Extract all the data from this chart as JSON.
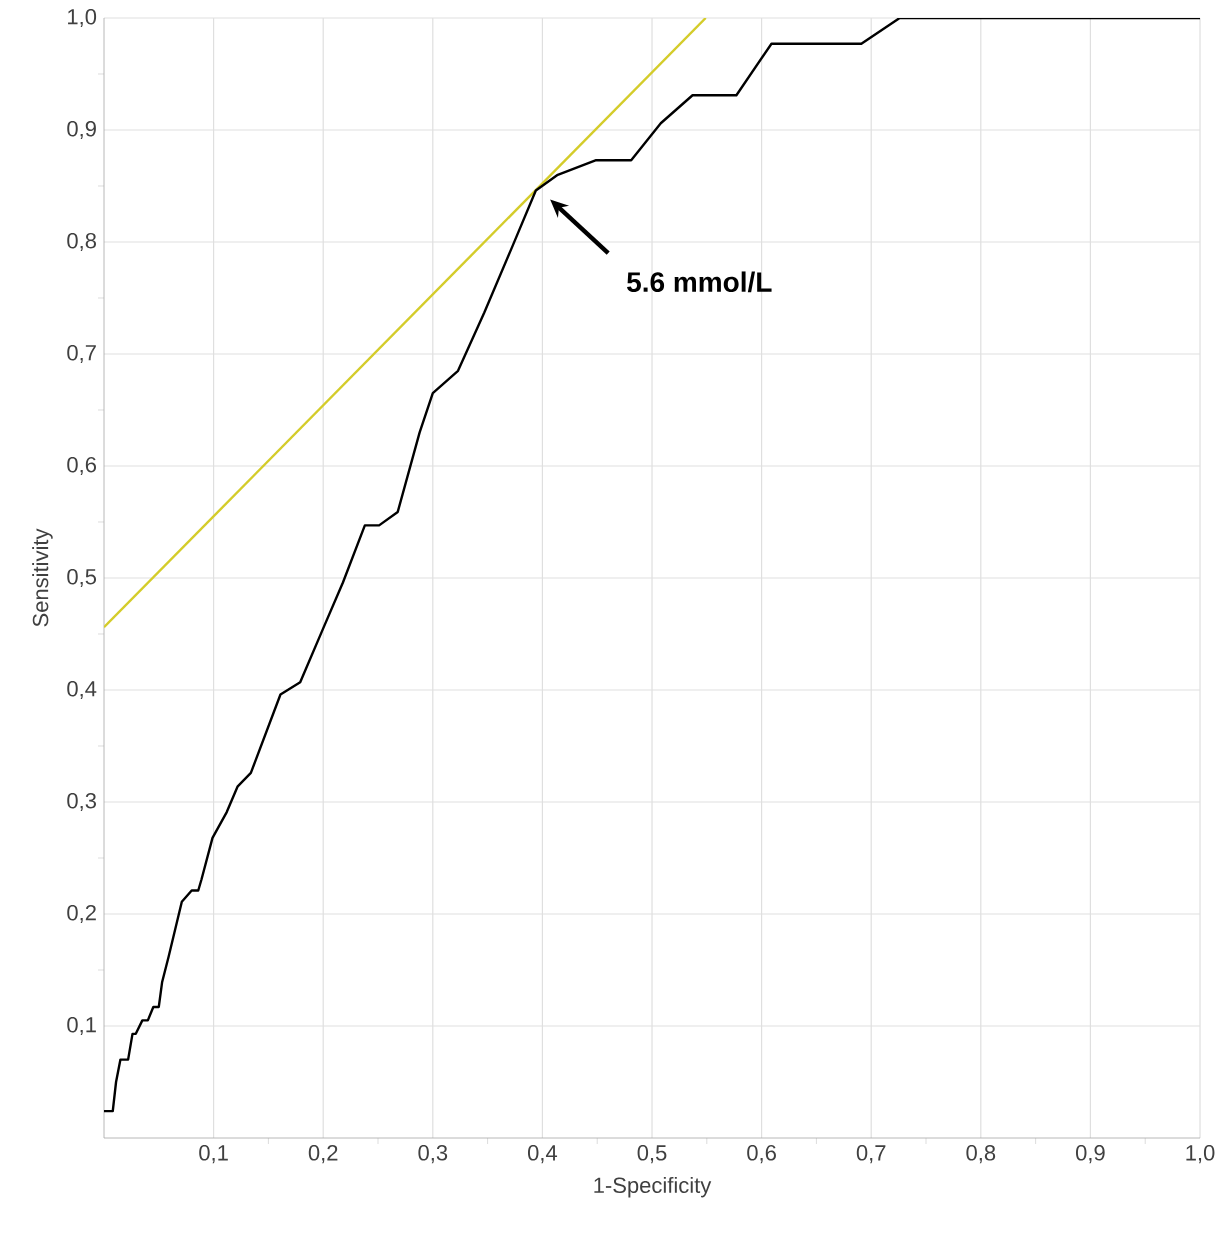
{
  "chart_data": {
    "type": "line",
    "xlabel": "1-Specificity",
    "ylabel": "Sensitivity",
    "xlim": [
      0,
      1
    ],
    "ylim": [
      0,
      1
    ],
    "xticks": [
      {
        "value": 0.1,
        "label": "0,1"
      },
      {
        "value": 0.2,
        "label": "0,2"
      },
      {
        "value": 0.3,
        "label": "0,3"
      },
      {
        "value": 0.4,
        "label": "0,4"
      },
      {
        "value": 0.5,
        "label": "0,5"
      },
      {
        "value": 0.6,
        "label": "0,6"
      },
      {
        "value": 0.7,
        "label": "0,7"
      },
      {
        "value": 0.8,
        "label": "0,8"
      },
      {
        "value": 0.9,
        "label": "0,9"
      },
      {
        "value": 1.0,
        "label": "1,0"
      }
    ],
    "yticks": [
      {
        "value": 0.1,
        "label": "0,1"
      },
      {
        "value": 0.2,
        "label": "0,2"
      },
      {
        "value": 0.3,
        "label": "0,3"
      },
      {
        "value": 0.4,
        "label": "0,4"
      },
      {
        "value": 0.5,
        "label": "0,5"
      },
      {
        "value": 0.6,
        "label": "0,6"
      },
      {
        "value": 0.7,
        "label": "0,7"
      },
      {
        "value": 0.8,
        "label": "0,8"
      },
      {
        "value": 0.9,
        "label": "0,9"
      },
      {
        "value": 1.0,
        "label": "1,0"
      }
    ],
    "grid": true,
    "series": [
      {
        "color": "#d4cc2a",
        "x": [
          0,
          0.549
        ],
        "values": [
          0.456,
          1.0
        ]
      },
      {
        "color": "#000000",
        "x": [
          0,
          0.008,
          0.011,
          0.015,
          0.022,
          0.026,
          0.029,
          0.035,
          0.04,
          0.045,
          0.05,
          0.053,
          0.059,
          0.071,
          0.08,
          0.086,
          0.089,
          0.099,
          0.112,
          0.122,
          0.134,
          0.161,
          0.179,
          0.2,
          0.218,
          0.238,
          0.251,
          0.268,
          0.288,
          0.3,
          0.323,
          0.347,
          0.373,
          0.394,
          0.414,
          0.449,
          0.481,
          0.508,
          0.537,
          0.577,
          0.609,
          0.691,
          0.726,
          1.0
        ],
        "values": [
          0.024,
          0.024,
          0.05,
          0.07,
          0.07,
          0.093,
          0.093,
          0.105,
          0.105,
          0.117,
          0.117,
          0.139,
          0.162,
          0.211,
          0.221,
          0.221,
          0.231,
          0.268,
          0.291,
          0.314,
          0.326,
          0.396,
          0.407,
          0.455,
          0.496,
          0.547,
          0.547,
          0.559,
          0.63,
          0.665,
          0.685,
          0.737,
          0.797,
          0.846,
          0.86,
          0.873,
          0.873,
          0.906,
          0.931,
          0.931,
          0.977,
          0.977,
          1.0,
          1.0
        ]
      }
    ],
    "annotations": [
      "5.6 mmol/L"
    ]
  }
}
